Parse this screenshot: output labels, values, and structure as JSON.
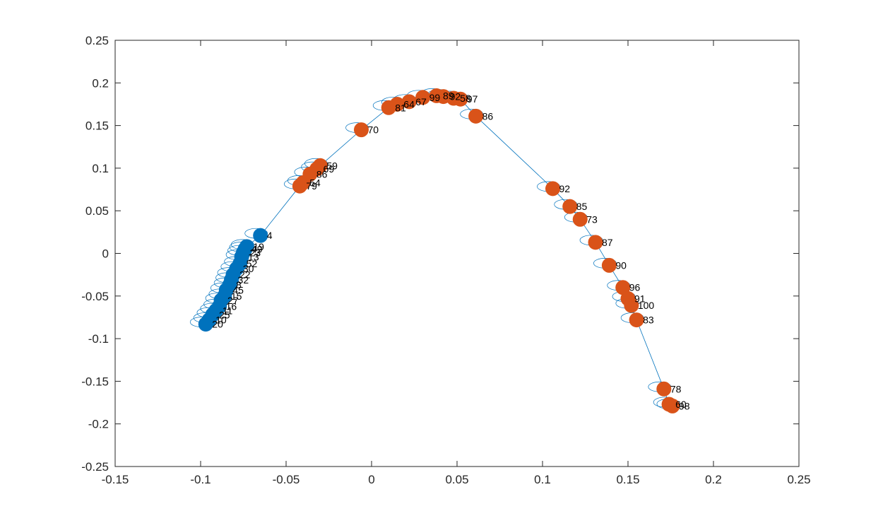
{
  "chart_data": {
    "type": "scatter",
    "title": "",
    "xlabel": "",
    "ylabel": "",
    "xlim": [
      -0.15,
      0.25
    ],
    "ylim": [
      -0.25,
      0.25
    ],
    "x_ticks": [
      "-0.15",
      "-0.1",
      "-0.05",
      "0",
      "0.05",
      "0.1",
      "0.15",
      "0.2",
      "0.25"
    ],
    "y_ticks": [
      "0.25",
      "0.2",
      "0.15",
      "0.1",
      "0.05",
      "0",
      "-0.05",
      "-0.1",
      "-0.15",
      "-0.2",
      "-0.25"
    ],
    "grid": false,
    "box": true,
    "colors": {
      "series_1": "#0072BD",
      "series_2": "#D95319",
      "link": "#0072BD",
      "axes": "#262626",
      "background": "#ffffff"
    },
    "series": [
      {
        "color": "#0072BD",
        "marker": "filled-circle",
        "points": [
          {
            "label": "4",
            "x": -0.065,
            "y": 0.021
          },
          {
            "label": "19",
            "x": -0.073,
            "y": 0.008
          },
          {
            "label": "49",
            "x": -0.074,
            "y": 0.005
          },
          {
            "label": "23",
            "x": -0.075,
            "y": 0.001
          },
          {
            "label": "13",
            "x": -0.076,
            "y": -0.004
          },
          {
            "label": "52",
            "x": -0.077,
            "y": -0.012
          },
          {
            "label": "30",
            "x": -0.079,
            "y": -0.018
          },
          {
            "label": "22",
            "x": -0.081,
            "y": -0.025
          },
          {
            "label": "32",
            "x": -0.082,
            "y": -0.031
          },
          {
            "label": "8",
            "x": -0.083,
            "y": -0.037
          },
          {
            "label": "45",
            "x": -0.085,
            "y": -0.043
          },
          {
            "label": "15",
            "x": -0.086,
            "y": -0.05
          },
          {
            "label": "27",
            "x": -0.088,
            "y": -0.055
          },
          {
            "label": "16",
            "x": -0.089,
            "y": -0.062
          },
          {
            "label": "11",
            "x": -0.091,
            "y": -0.067
          },
          {
            "label": "25",
            "x": -0.093,
            "y": -0.072
          },
          {
            "label": "10",
            "x": -0.095,
            "y": -0.078
          },
          {
            "label": "20",
            "x": -0.097,
            "y": -0.083
          }
        ]
      },
      {
        "color": "#D95319",
        "marker": "filled-circle",
        "points": [
          {
            "label": "79",
            "x": -0.042,
            "y": 0.079
          },
          {
            "label": "54",
            "x": -0.04,
            "y": 0.083
          },
          {
            "label": "86",
            "x": -0.036,
            "y": 0.093
          },
          {
            "label": "69",
            "x": -0.032,
            "y": 0.099
          },
          {
            "label": "59",
            "x": -0.03,
            "y": 0.103
          },
          {
            "label": "70",
            "x": -0.006,
            "y": 0.145
          },
          {
            "label": "81",
            "x": 0.01,
            "y": 0.171
          },
          {
            "label": "64",
            "x": 0.015,
            "y": 0.175
          },
          {
            "label": "67",
            "x": 0.022,
            "y": 0.178
          },
          {
            "label": "99",
            "x": 0.03,
            "y": 0.183
          },
          {
            "label": "89",
            "x": 0.038,
            "y": 0.185
          },
          {
            "label": "92",
            "x": 0.042,
            "y": 0.184
          },
          {
            "label": "58",
            "x": 0.048,
            "y": 0.182
          },
          {
            "label": "97",
            "x": 0.052,
            "y": 0.181
          },
          {
            "label": "86",
            "x": 0.061,
            "y": 0.161
          },
          {
            "label": "92",
            "x": 0.106,
            "y": 0.076
          },
          {
            "label": "85",
            "x": 0.116,
            "y": 0.055
          },
          {
            "label": "73",
            "x": 0.122,
            "y": 0.04
          },
          {
            "label": "87",
            "x": 0.131,
            "y": 0.013
          },
          {
            "label": "90",
            "x": 0.139,
            "y": -0.014
          },
          {
            "label": "96",
            "x": 0.147,
            "y": -0.04
          },
          {
            "label": "91",
            "x": 0.15,
            "y": -0.053
          },
          {
            "label": "100",
            "x": 0.152,
            "y": -0.061
          },
          {
            "label": "83",
            "x": 0.155,
            "y": -0.078
          },
          {
            "label": "78",
            "x": 0.171,
            "y": -0.159
          },
          {
            "label": "60",
            "x": 0.174,
            "y": -0.177
          },
          {
            "label": "98",
            "x": 0.176,
            "y": -0.179
          }
        ]
      }
    ]
  }
}
